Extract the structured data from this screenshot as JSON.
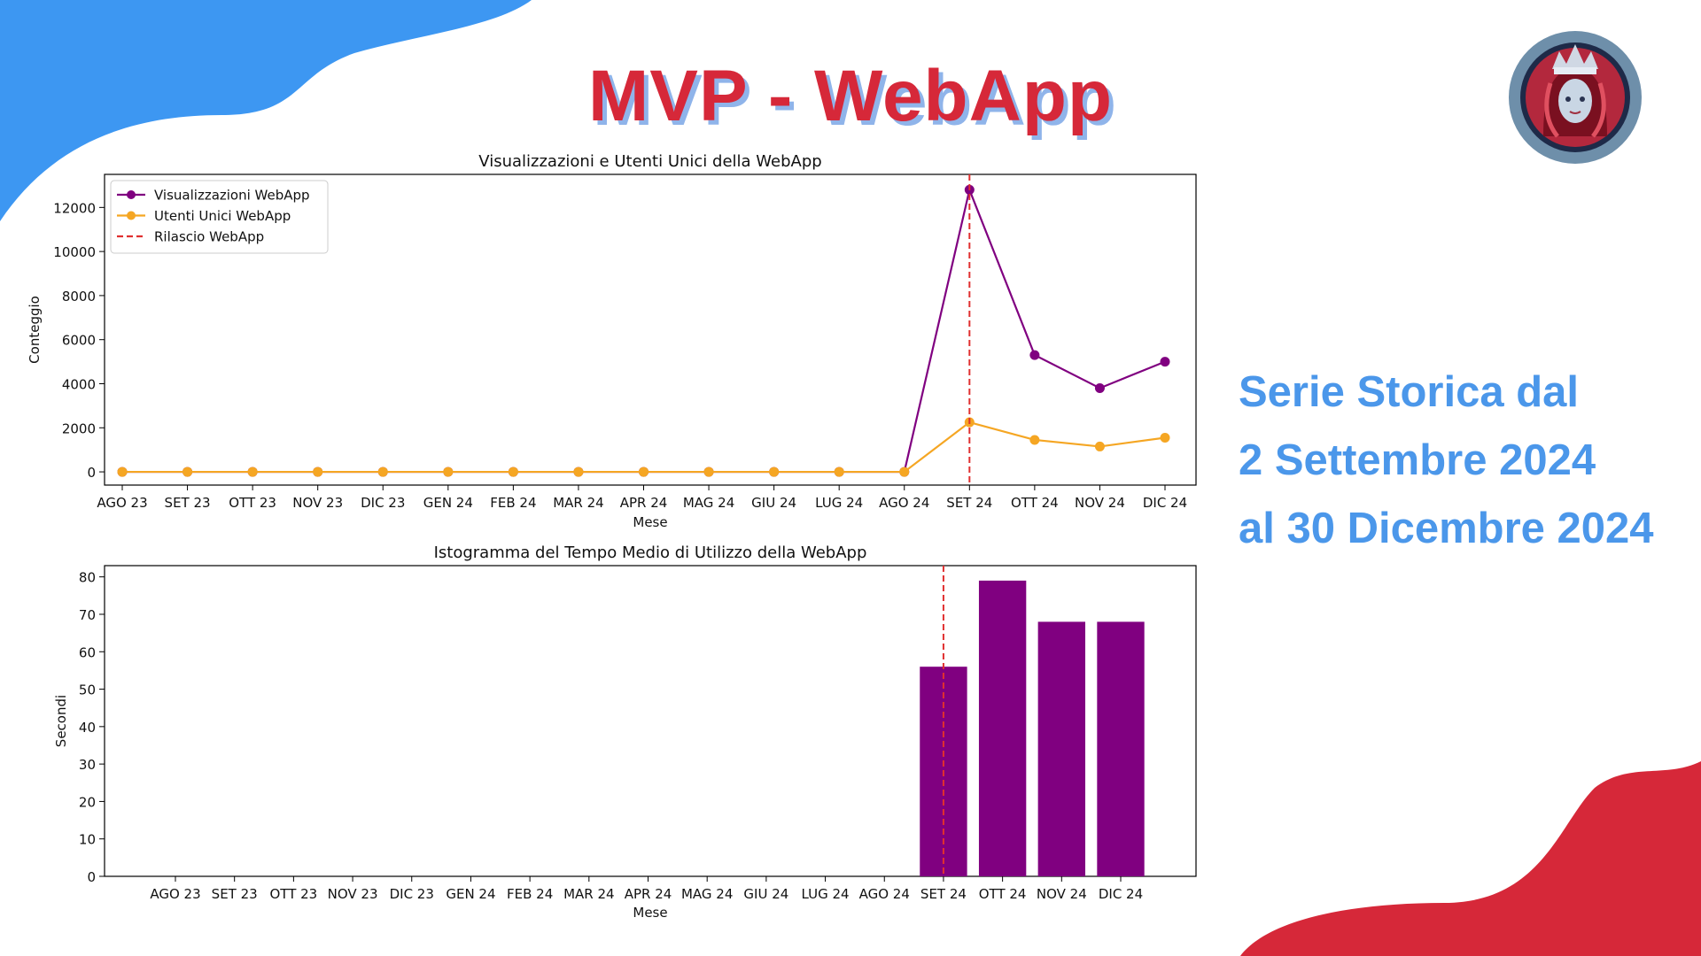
{
  "slide": {
    "title": "MVP - WebApp",
    "side_text": [
      "Serie Storica dal",
      "2 Settembre 2024",
      "al 30 Dicembre 2024"
    ],
    "colors": {
      "title": "#d62839",
      "title_shadow": "#8fb4ea",
      "side_text": "#4b97ea",
      "blob_blue": "#3d97f2",
      "blob_red": "#d62839"
    },
    "logo": {
      "icon": "warrior-woman-logo-icon"
    }
  },
  "chart_data": [
    {
      "type": "line",
      "title": "Visualizzazioni e Utenti Unici della WebApp",
      "xlabel": "Mese",
      "ylabel": "Conteggio",
      "categories": [
        "AGO 23",
        "SET 23",
        "OTT 23",
        "NOV 23",
        "DIC 23",
        "GEN 24",
        "FEB 24",
        "MAR 24",
        "APR 24",
        "MAG 24",
        "GIU 24",
        "LUG 24",
        "AGO 24",
        "SET 24",
        "OTT 24",
        "NOV 24",
        "DIC 24"
      ],
      "ylim": [
        -600,
        13500
      ],
      "yticks": [
        0,
        2000,
        4000,
        6000,
        8000,
        10000,
        12000
      ],
      "series": [
        {
          "name": "Visualizzazioni WebApp",
          "color": "#800080",
          "values": [
            0,
            0,
            0,
            0,
            0,
            0,
            0,
            0,
            0,
            0,
            0,
            0,
            0,
            12800,
            5300,
            3800,
            5000
          ]
        },
        {
          "name": "Utenti Unici WebApp",
          "color": "#f5a623",
          "values": [
            0,
            0,
            0,
            0,
            0,
            0,
            0,
            0,
            0,
            0,
            0,
            0,
            0,
            2250,
            1450,
            1150,
            1550
          ]
        }
      ],
      "vline": {
        "name": "Rilascio WebApp",
        "color": "#e03030",
        "at": "SET 24"
      },
      "legend": "top-left",
      "grid": false
    },
    {
      "type": "bar",
      "title": "Istogramma del Tempo Medio di Utilizzo della WebApp",
      "xlabel": "Mese",
      "ylabel": "Secondi",
      "categories": [
        "AGO 23",
        "SET 23",
        "OTT 23",
        "NOV 23",
        "DIC 23",
        "GEN 24",
        "FEB 24",
        "MAR 24",
        "APR 24",
        "MAG 24",
        "GIU 24",
        "LUG 24",
        "AGO 24",
        "SET 24",
        "OTT 24",
        "NOV 24",
        "DIC 24"
      ],
      "values": [
        0,
        0,
        0,
        0,
        0,
        0,
        0,
        0,
        0,
        0,
        0,
        0,
        0,
        56,
        79,
        68,
        68
      ],
      "color": "#800080",
      "ylim": [
        0,
        83
      ],
      "yticks": [
        0,
        10,
        20,
        30,
        40,
        50,
        60,
        70,
        80
      ],
      "vline": {
        "color": "#e03030",
        "at": "SET 24"
      },
      "grid": false
    }
  ]
}
